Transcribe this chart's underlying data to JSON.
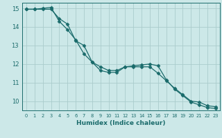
{
  "xlabel": "Humidex (Indice chaleur)",
  "background_color": "#cce8e8",
  "line_color": "#1a6b6b",
  "grid_color": "#aacccc",
  "xlim": [
    -0.5,
    23.5
  ],
  "ylim": [
    9.5,
    15.3
  ],
  "yticks": [
    10,
    11,
    12,
    13,
    14,
    15
  ],
  "xticks": [
    0,
    1,
    2,
    3,
    4,
    5,
    6,
    7,
    8,
    9,
    10,
    11,
    12,
    13,
    14,
    15,
    16,
    17,
    18,
    19,
    20,
    21,
    22,
    23
  ],
  "line1_x": [
    0,
    1,
    2,
    3,
    4,
    5,
    6,
    7,
    8,
    9,
    10,
    11,
    12,
    13,
    14,
    15,
    16,
    17,
    18,
    19,
    20,
    21,
    22,
    23
  ],
  "line1_y": [
    14.95,
    14.95,
    14.95,
    14.95,
    14.45,
    14.15,
    13.25,
    13.0,
    12.1,
    11.85,
    11.65,
    11.65,
    11.85,
    11.85,
    11.85,
    11.85,
    11.5,
    11.1,
    10.7,
    10.35,
    10.0,
    9.95,
    9.75,
    9.7
  ],
  "line2_x": [
    0,
    1,
    2,
    3,
    4,
    5,
    6,
    7,
    8,
    9,
    10,
    11,
    12,
    13,
    14,
    15,
    16,
    17,
    18,
    19,
    20,
    21,
    22,
    23
  ],
  "line2_y": [
    14.95,
    14.95,
    15.0,
    15.05,
    14.3,
    13.85,
    13.3,
    12.55,
    12.1,
    11.65,
    11.55,
    11.55,
    11.85,
    11.9,
    11.95,
    12.0,
    11.9,
    11.15,
    10.65,
    10.3,
    9.95,
    9.8,
    9.65,
    9.6
  ]
}
